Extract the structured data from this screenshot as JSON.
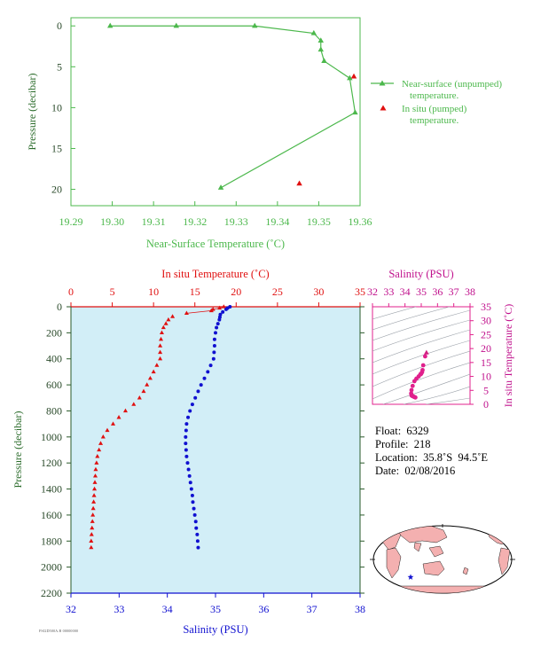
{
  "chart_data": [
    {
      "type": "line",
      "xlabel": "Near-Surface Temperature (˚C)",
      "ylabel": "Pressure (decibar)",
      "xlim": [
        19.29,
        19.36
      ],
      "ylim": [
        22,
        -1
      ],
      "xticks": [
        "19.29",
        "19.30",
        "19.31",
        "19.32",
        "19.33",
        "19.34",
        "19.35",
        "19.36"
      ],
      "yticks": [
        "0",
        "5",
        "10",
        "15",
        "20"
      ],
      "grid": false,
      "legend": "right",
      "series": [
        {
          "name": "Near-surface (unpumped) temperature.",
          "color": "#4cb84c",
          "marker": "triangle",
          "points": [
            [
              19.2995,
              0
            ],
            [
              19.3155,
              0
            ],
            [
              19.3345,
              0
            ],
            [
              19.3488,
              0.9
            ],
            [
              19.3505,
              1.8
            ],
            [
              19.3505,
              2.9
            ],
            [
              19.3513,
              4.3
            ],
            [
              19.3575,
              6.4
            ],
            [
              19.3588,
              10.6
            ],
            [
              19.3263,
              19.8
            ]
          ]
        },
        {
          "name": "In situ (pumped) temperature.",
          "color": "#e01010",
          "marker": "triangle",
          "points": [
            [
              19.3585,
              6.2
            ],
            [
              19.3453,
              19.3
            ]
          ]
        }
      ]
    },
    {
      "type": "scatter",
      "xlabel_top": "In situ Temperature (˚C)",
      "xlabel_bottom": "Salinity (PSU)",
      "ylabel": "Pressure (decibar)",
      "temp_xlim": [
        0,
        35
      ],
      "sal_xlim": [
        32,
        38
      ],
      "ylim": [
        2200,
        0
      ],
      "temp_ticks": [
        "0",
        "5",
        "10",
        "15",
        "20",
        "25",
        "30",
        "35"
      ],
      "sal_ticks": [
        "32",
        "33",
        "34",
        "35",
        "36",
        "37",
        "38"
      ],
      "yticks": [
        "0",
        "200",
        "400",
        "600",
        "800",
        "1000",
        "1200",
        "1400",
        "1600",
        "1800",
        "2000",
        "2200"
      ],
      "background": "#d2eef7",
      "temperature": {
        "color": "#e01010",
        "marker": "triangle",
        "points": [
          [
            18.5,
            0
          ],
          [
            18.0,
            10
          ],
          [
            17.2,
            20
          ],
          [
            17.0,
            30
          ],
          [
            14.0,
            50
          ],
          [
            12.3,
            75
          ],
          [
            11.8,
            100
          ],
          [
            11.5,
            130
          ],
          [
            11.2,
            160
          ],
          [
            11.0,
            200
          ],
          [
            10.9,
            250
          ],
          [
            10.8,
            300
          ],
          [
            10.8,
            350
          ],
          [
            10.8,
            400
          ],
          [
            10.4,
            450
          ],
          [
            10.0,
            500
          ],
          [
            9.6,
            550
          ],
          [
            9.2,
            600
          ],
          [
            8.8,
            650
          ],
          [
            8.3,
            700
          ],
          [
            7.6,
            750
          ],
          [
            6.6,
            800
          ],
          [
            5.8,
            850
          ],
          [
            5.1,
            900
          ],
          [
            4.4,
            950
          ],
          [
            3.9,
            1000
          ],
          [
            3.6,
            1050
          ],
          [
            3.4,
            1100
          ],
          [
            3.2,
            1150
          ],
          [
            3.1,
            1200
          ],
          [
            3.0,
            1250
          ],
          [
            2.95,
            1300
          ],
          [
            2.9,
            1350
          ],
          [
            2.85,
            1400
          ],
          [
            2.8,
            1450
          ],
          [
            2.75,
            1500
          ],
          [
            2.7,
            1550
          ],
          [
            2.65,
            1600
          ],
          [
            2.6,
            1650
          ],
          [
            2.55,
            1700
          ],
          [
            2.5,
            1750
          ],
          [
            2.45,
            1800
          ],
          [
            2.45,
            1850
          ]
        ]
      },
      "salinity": {
        "color": "#1010d0",
        "marker": "dot",
        "points": [
          [
            35.3,
            0
          ],
          [
            35.25,
            10
          ],
          [
            35.22,
            20
          ],
          [
            35.15,
            40
          ],
          [
            35.1,
            60
          ],
          [
            35.09,
            80
          ],
          [
            35.08,
            100
          ],
          [
            35.05,
            130
          ],
          [
            35.02,
            160
          ],
          [
            35.0,
            200
          ],
          [
            34.98,
            250
          ],
          [
            34.98,
            300
          ],
          [
            34.97,
            350
          ],
          [
            34.96,
            400
          ],
          [
            34.9,
            450
          ],
          [
            34.84,
            500
          ],
          [
            34.77,
            550
          ],
          [
            34.7,
            600
          ],
          [
            34.64,
            650
          ],
          [
            34.58,
            700
          ],
          [
            34.52,
            750
          ],
          [
            34.47,
            800
          ],
          [
            34.43,
            850
          ],
          [
            34.4,
            900
          ],
          [
            34.39,
            950
          ],
          [
            34.38,
            1000
          ],
          [
            34.38,
            1050
          ],
          [
            34.39,
            1100
          ],
          [
            34.4,
            1150
          ],
          [
            34.42,
            1200
          ],
          [
            34.44,
            1250
          ],
          [
            34.46,
            1300
          ],
          [
            34.48,
            1350
          ],
          [
            34.5,
            1400
          ],
          [
            34.52,
            1450
          ],
          [
            34.53,
            1500
          ],
          [
            34.55,
            1550
          ],
          [
            34.57,
            1600
          ],
          [
            34.59,
            1650
          ],
          [
            34.6,
            1700
          ],
          [
            34.62,
            1750
          ],
          [
            34.63,
            1800
          ],
          [
            34.64,
            1850
          ]
        ]
      }
    },
    {
      "type": "scatter",
      "xlabel": "Salinity (PSU)",
      "ylabel": "In situ Temperature (˚C)",
      "xlim": [
        32,
        38
      ],
      "ylim": [
        0,
        35
      ],
      "xticks": [
        "32",
        "33",
        "34",
        "35",
        "36",
        "37",
        "38"
      ],
      "yticks": [
        "0",
        "5",
        "10",
        "15",
        "20",
        "25",
        "30",
        "35"
      ],
      "color": "#e0208c",
      "points": [
        [
          35.32,
          18.5
        ],
        [
          35.24,
          17.2
        ],
        [
          35.12,
          14.0
        ],
        [
          35.08,
          12.3
        ],
        [
          35.05,
          11.5
        ],
        [
          35.0,
          11.0
        ],
        [
          34.97,
          10.8
        ],
        [
          34.95,
          10.8
        ],
        [
          34.84,
          10.0
        ],
        [
          34.7,
          9.2
        ],
        [
          34.58,
          8.3
        ],
        [
          34.47,
          6.6
        ],
        [
          34.4,
          5.1
        ],
        [
          34.38,
          3.9
        ],
        [
          34.4,
          3.2
        ],
        [
          34.44,
          3.0
        ],
        [
          34.5,
          2.85
        ],
        [
          34.55,
          2.7
        ],
        [
          34.6,
          2.55
        ],
        [
          34.64,
          2.45
        ]
      ]
    }
  ],
  "float_info": {
    "float": "Float:  6329",
    "profile": "Profile:  218",
    "location": "Location:  35.8˚S  94.5˚E",
    "date": "Date:  02/08/2016"
  },
  "footnote": "FSI2D500A.B 00000000",
  "map": {
    "land_color": "#f4b0b0",
    "ocean_color": "#ffffff",
    "marker_color": "#1010d0",
    "marker": "star"
  }
}
